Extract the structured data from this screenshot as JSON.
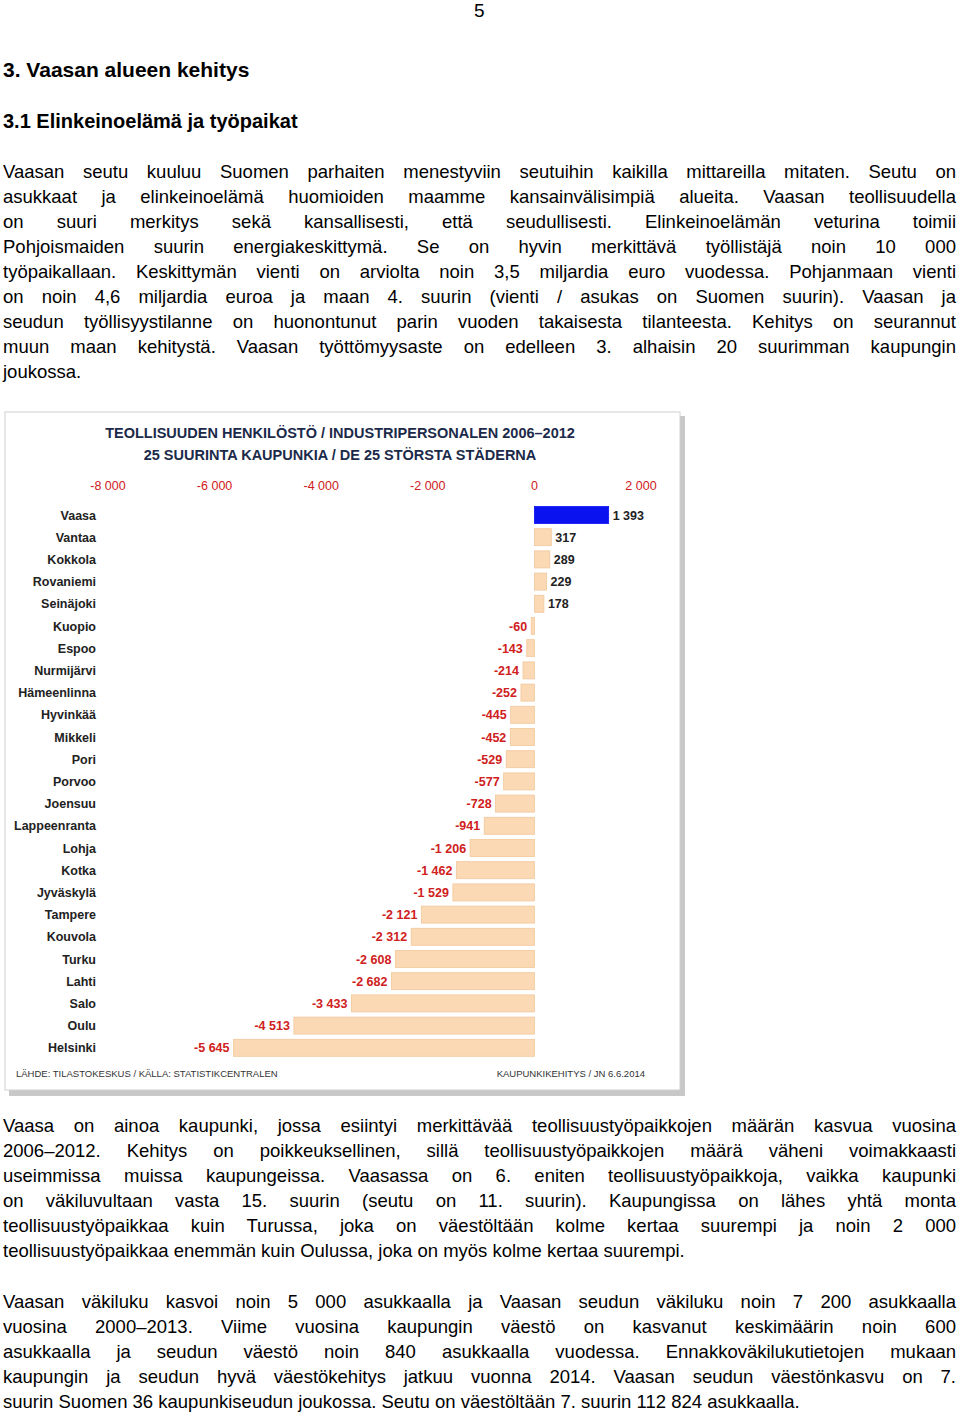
{
  "page_number": 5,
  "headings": [
    "3. Vaasan alueen kehitys",
    "3.1 Elinkeinoelämä ja työpaikat"
  ],
  "paragraphs": [
    {
      "lines": [
        "Vaasan seutu kuuluu Suomen parhaiten menestyviin seutuihin kaikilla mittareilla mitaten. Seutu on",
        "asukkaat ja elinkeinoelämä huomioiden maamme kansainvälisimpiä alueita. Vaasan teollisuudella",
        "on suuri merkitys sekä kansallisesti, että seudullisesti. Elinkeinoelämän veturina toimii",
        "Pohjoismaiden suurin energiakeskittymä. Se on hyvin merkittävä työllistäjä noin 10 000",
        "työpaikallaan. Keskittymän vienti on arviolta noin 3,5 miljardia euro vuodessa. Pohjanmaan vienti",
        "on noin 4,6 miljardia euroa ja maan 4. suurin (vienti / asukas on Suomen suurin). Vaasan ja",
        "seudun työllisyystilanne on huonontunut parin vuoden takaisesta tilanteesta. Kehitys on seurannut",
        "muun maan kehitystä. Vaasan työttömyysaste on edelleen 3. alhaisin 20 suurimman kaupungin",
        "joukossa."
      ]
    },
    {
      "lines": [
        "Vaasa on ainoa kaupunki, jossa esiintyi merkittävää teollisuustyöpaikkojen määrän kasvua vuosina",
        "2006–2012. Kehitys on poikkeuksellinen, sillä teollisuustyöpaikkojen määrä väheni voimakkaasti",
        "useimmissa muissa kaupungeissa. Vaasassa on 6. eniten teollisuustyöpaikkoja, vaikka kaupunki",
        "on väkiluvultaan vasta 15. suurin (seutu on 11. suurin). Kaupungissa on lähes yhtä monta",
        "teollisuustyöpaikkaa kuin Turussa, joka on väestöltään kolme kertaa suurempi ja noin 2 000",
        "teollisuustyöpaikkaa enemmän kuin Oulussa, joka on myös kolme kertaa suurempi."
      ]
    },
    {
      "lines": [
        "Vaasan väkiluku kasvoi noin 5 000 asukkaalla ja Vaasan seudun väkiluku noin 7 200 asukkaalla",
        "vuosina 2000–2013. Viime vuosina kaupungin väestö on kasvanut keskimäärin noin 600",
        "asukkaalla ja seudun väestö noin 840 asukkaalla vuodessa. Ennakkoväkilukutietojen mukaan",
        "kaupungin ja seudun hyvä väestökehitys jatkuu vuonna 2014. Vaasan seudun väestönkasvu on 7.",
        "suurin Suomen 36 kaupunkiseudun joukossa. Seutu on väestöltään 7. suurin 112 824 asukkaalla."
      ]
    }
  ],
  "chart_data": {
    "type": "bar",
    "orientation": "horizontal",
    "title": "TEOLLISUUDEN HENKILÖSTÖ / INDUSTRIPERSONALEN 2006–2012",
    "subtitle": "25 SUURINTA KAUPUNKIA / DE 25 STÖRSTA STÄDERNA",
    "categories": [
      "Vaasa",
      "Vantaa",
      "Kokkola",
      "Rovaniemi",
      "Seinäjoki",
      "Kuopio",
      "Espoo",
      "Nurmijärvi",
      "Hämeenlinna",
      "Hyvinkää",
      "Mikkeli",
      "Pori",
      "Porvoo",
      "Joensuu",
      "Lappeenranta",
      "Lohja",
      "Kotka",
      "Jyväskylä",
      "Tampere",
      "Kouvola",
      "Turku",
      "Lahti",
      "Salo",
      "Oulu",
      "Helsinki"
    ],
    "values": [
      1393,
      317,
      289,
      229,
      178,
      -60,
      -143,
      -214,
      -252,
      -445,
      -452,
      -529,
      -577,
      -728,
      -941,
      -1206,
      -1462,
      -1529,
      -2121,
      -2312,
      -2608,
      -2682,
      -3433,
      -4513,
      -5645
    ],
    "value_labels": [
      "1 393",
      "317",
      "289",
      "229",
      "178",
      "-60",
      "-143",
      "-214",
      "-252",
      "-445",
      "-452",
      "-529",
      "-577",
      "-728",
      "-941",
      "-1 206",
      "-1 462",
      "-1 529",
      "-2 121",
      "-2 312",
      "-2 608",
      "-2 682",
      "-3 433",
      "-4 513",
      "-5 645"
    ],
    "colors": [
      "#0a12f0",
      "#fbd9b5",
      "#fbd9b5",
      "#fbd9b5",
      "#fbd9b5",
      "#fbd9b5",
      "#fbd9b5",
      "#fbd9b5",
      "#fbd9b5",
      "#fbd9b5",
      "#fbd9b5",
      "#fbd9b5",
      "#fbd9b5",
      "#fbd9b5",
      "#fbd9b5",
      "#fbd9b5",
      "#fbd9b5",
      "#fbd9b5",
      "#fbd9b5",
      "#fbd9b5",
      "#fbd9b5",
      "#fbd9b5",
      "#fbd9b5",
      "#fbd9b5",
      "#fbd9b5"
    ],
    "xlim": [
      -8000,
      2000
    ],
    "xticks": [
      {
        "value": -8000,
        "label": "-8 000"
      },
      {
        "value": -6000,
        "label": "-6 000"
      },
      {
        "value": -4000,
        "label": "-4 000"
      },
      {
        "value": -2000,
        "label": "-2 000"
      },
      0,
      {
        "value": 2000,
        "label": "2 000"
      }
    ],
    "data_labels": true,
    "grid": false,
    "annotations": [
      "LÄHDE: TILASTOKESKUS / KÄLLA: STATISTIKCENTRALEN",
      "KAUPUNKIKEHITYS / JN 6.6.2014"
    ]
  }
}
